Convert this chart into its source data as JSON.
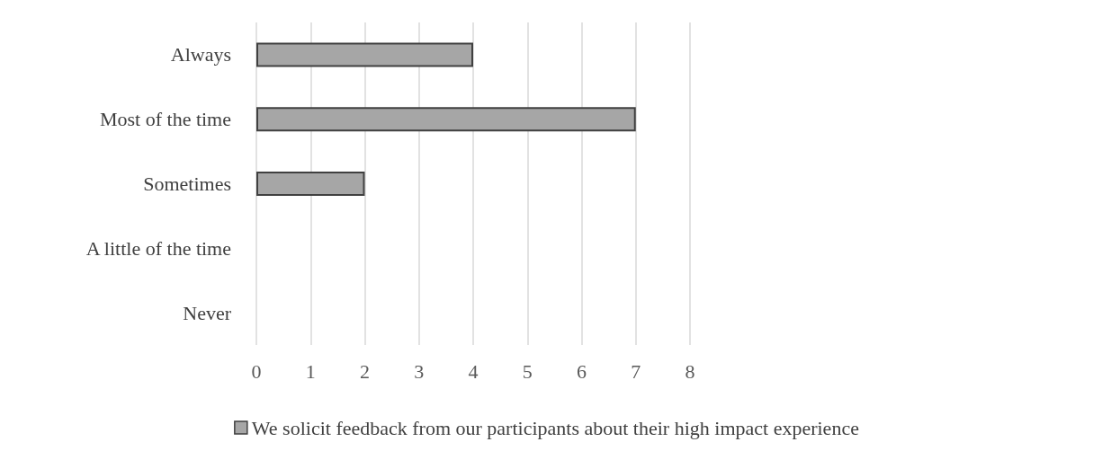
{
  "chart_data": {
    "type": "bar",
    "orientation": "horizontal",
    "categories": [
      "Always",
      "Most of the time",
      "Sometimes",
      "A little of the time",
      "Never"
    ],
    "series": [
      {
        "name": "We solicit feedback from our participants about their high impact experience",
        "color": "#a6a6a6",
        "values": [
          4,
          7,
          2,
          0,
          0
        ]
      }
    ],
    "xlim": [
      0,
      8
    ],
    "xticks": [
      0,
      1,
      2,
      3,
      4,
      5,
      6,
      7,
      8
    ],
    "grid": "x",
    "legend": "bottom"
  }
}
